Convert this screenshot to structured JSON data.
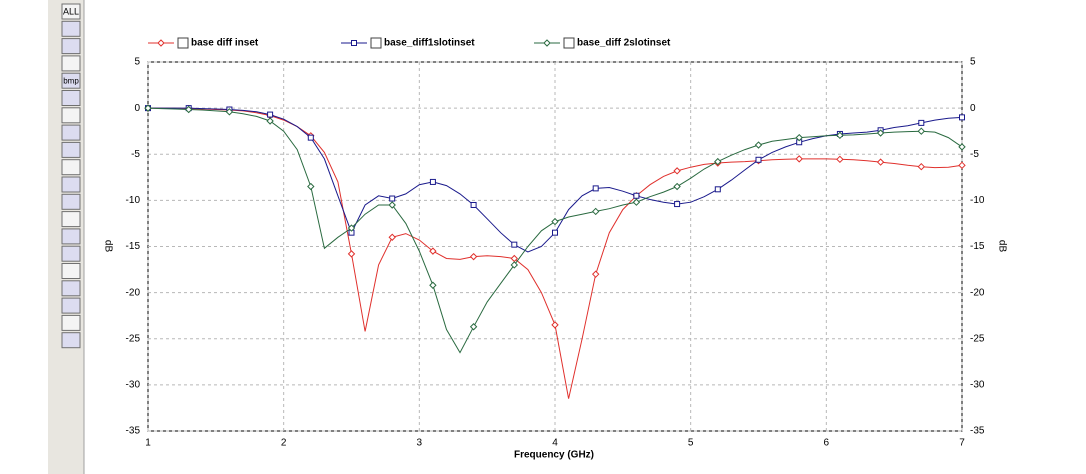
{
  "toolbar": {
    "buttons": [
      "ALL",
      "bmp"
    ]
  },
  "chart_data": {
    "type": "line",
    "xlabel": "Frequency (GHz)",
    "ylabel": "dB",
    "x": [
      1.0,
      1.1,
      1.2,
      1.3,
      1.4,
      1.5,
      1.6,
      1.7,
      1.8,
      1.9,
      2.0,
      2.1,
      2.2,
      2.3,
      2.4,
      2.5,
      2.6,
      2.7,
      2.8,
      2.9,
      3.0,
      3.1,
      3.2,
      3.3,
      3.4,
      3.5,
      3.6,
      3.7,
      3.8,
      3.9,
      4.0,
      4.1,
      4.2,
      4.3,
      4.4,
      4.5,
      4.6,
      4.7,
      4.8,
      4.9,
      5.0,
      5.1,
      5.2,
      5.3,
      5.4,
      5.5,
      5.6,
      5.7,
      5.8,
      5.9,
      6.0,
      6.1,
      6.2,
      6.3,
      6.4,
      6.5,
      6.6,
      6.7,
      6.8,
      6.9,
      7.0
    ],
    "series": [
      {
        "name": "base diff inset",
        "color": "#e0302c",
        "marker": "diamond",
        "values": [
          0,
          0,
          0,
          -0.05,
          -0.1,
          -0.15,
          -0.2,
          -0.3,
          -0.5,
          -0.8,
          -1.3,
          -2.0,
          -3.0,
          -4.8,
          -8,
          -15.8,
          -24.2,
          -17,
          -14,
          -13.6,
          -14.3,
          -15.5,
          -16.3,
          -16.4,
          -16.1,
          -16,
          -16.1,
          -16.3,
          -17.5,
          -20,
          -23.5,
          -31.5,
          -25,
          -18,
          -13.5,
          -11,
          -9.5,
          -8.3,
          -7.4,
          -6.8,
          -6.4,
          -6.1,
          -5.95,
          -5.85,
          -5.8,
          -5.7,
          -5.6,
          -5.55,
          -5.5,
          -5.5,
          -5.5,
          -5.55,
          -5.6,
          -5.7,
          -5.85,
          -6,
          -6.2,
          -6.35,
          -6.45,
          -6.4,
          -6.2
        ]
      },
      {
        "name": "base_diff1slotinset",
        "color": "#1a1a8c",
        "marker": "square",
        "values": [
          0,
          0,
          0,
          0,
          -0.05,
          -0.1,
          -0.15,
          -0.25,
          -0.4,
          -0.7,
          -1.2,
          -2.0,
          -3.2,
          -5.5,
          -9.5,
          -13.5,
          -10.5,
          -9.5,
          -9.8,
          -9.3,
          -8.3,
          -8,
          -8.4,
          -9.3,
          -10.5,
          -12,
          -13.5,
          -14.8,
          -15.6,
          -15,
          -13.5,
          -11,
          -9.5,
          -8.7,
          -8.6,
          -9,
          -9.5,
          -9.9,
          -10.2,
          -10.4,
          -10.2,
          -9.6,
          -8.8,
          -7.8,
          -6.7,
          -5.6,
          -4.8,
          -4.2,
          -3.7,
          -3.3,
          -3.0,
          -2.8,
          -2.7,
          -2.6,
          -2.4,
          -2.1,
          -1.9,
          -1.6,
          -1.3,
          -1.1,
          -1.0
        ]
      },
      {
        "name": "base_diff 2slotinset",
        "color": "#2a6a40",
        "marker": "diamond",
        "values": [
          0,
          -0.05,
          -0.1,
          -0.15,
          -0.2,
          -0.3,
          -0.4,
          -0.6,
          -0.9,
          -1.4,
          -2.5,
          -4.5,
          -8.5,
          -15.2,
          -14,
          -13,
          -11.5,
          -10.5,
          -10.5,
          -12.5,
          -15.5,
          -19.2,
          -24,
          -26.5,
          -23.7,
          -21,
          -19,
          -17,
          -15,
          -13.3,
          -12.3,
          -11.8,
          -11.5,
          -11.2,
          -10.9,
          -10.5,
          -10.2,
          -9.6,
          -9.1,
          -8.5,
          -7.6,
          -6.6,
          -5.8,
          -5.1,
          -4.5,
          -4.0,
          -3.6,
          -3.4,
          -3.2,
          -3.1,
          -3.0,
          -2.95,
          -2.9,
          -2.8,
          -2.7,
          -2.6,
          -2.55,
          -2.5,
          -2.6,
          -3.2,
          -4.2
        ]
      }
    ],
    "xlim": [
      1,
      7
    ],
    "xticks": [
      1,
      2,
      3,
      4,
      5,
      6,
      7
    ],
    "ylim": [
      -35,
      5
    ],
    "yticks": [
      5,
      0,
      -5,
      -10,
      -15,
      -20,
      -25,
      -30,
      -35
    ],
    "grid": true,
    "legend": "top"
  }
}
